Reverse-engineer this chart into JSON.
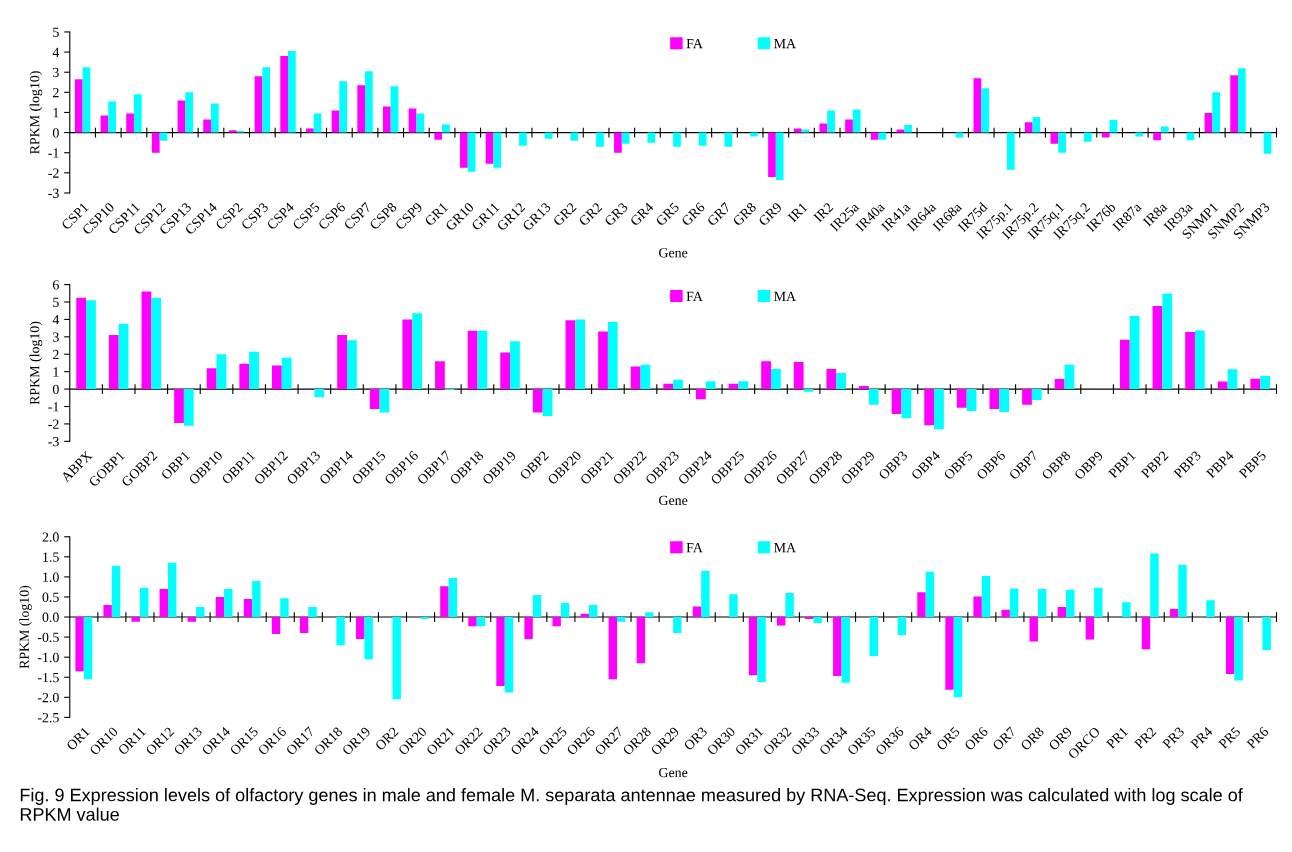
{
  "chart_data": [
    {
      "type": "bar",
      "ylabel": "RPKM (log10)",
      "xlabel": "Gene",
      "legend": "top",
      "categories": [
        "CSP1",
        "CSP10",
        "CSP11",
        "CSP12",
        "CSP13",
        "CSP14",
        "CSP2",
        "CSP3",
        "CSP4",
        "CSP5",
        "CSP6",
        "CSP7",
        "CSP8",
        "CSP9",
        "GR1",
        "GR10",
        "GR11",
        "GR12",
        "GR13",
        "GR2",
        "GR2",
        "GR3",
        "GR4",
        "GR5",
        "GR6",
        "GR7",
        "GR8",
        "GR9",
        "IR1",
        "IR2",
        "IR25a",
        "IR40a",
        "IR41a",
        "IR64a",
        "IR68a",
        "IR75d",
        "IR75p.1",
        "IR75p.2",
        "IR75q.1",
        "IR75q.2",
        "IR76b",
        "IR87a",
        "IR8a",
        "IR93a",
        "SNMP1",
        "SNMP2",
        "SNMP3"
      ],
      "ylim": [
        -3,
        5
      ],
      "yticks": [
        -3,
        -2,
        -1,
        0,
        1,
        2,
        3,
        4,
        5
      ],
      "series": [
        {
          "name": "FA",
          "color": "#ff00ff",
          "values": [
            2.65,
            0.85,
            0.95,
            -1.0,
            1.6,
            0.65,
            0.12,
            2.8,
            3.8,
            0.2,
            1.1,
            2.35,
            1.3,
            1.2,
            -0.35,
            -1.75,
            -1.55,
            null,
            null,
            null,
            null,
            -1.0,
            null,
            null,
            null,
            null,
            null,
            -2.2,
            0.2,
            0.45,
            0.65,
            -0.35,
            0.15,
            null,
            null,
            2.7,
            null,
            0.52,
            -0.55,
            null,
            -0.25,
            null,
            -0.38,
            null,
            0.97,
            2.85,
            null
          ]
        },
        {
          "name": "MA",
          "color": "#00ffff",
          "values": [
            3.25,
            1.55,
            1.9,
            -0.4,
            2.0,
            1.45,
            0.08,
            3.25,
            4.05,
            0.95,
            2.55,
            3.05,
            2.3,
            0.95,
            0.4,
            -1.95,
            -1.75,
            -0.65,
            -0.3,
            -0.4,
            -0.7,
            -0.55,
            -0.5,
            -0.7,
            -0.65,
            -0.7,
            -0.2,
            -2.35,
            0.15,
            1.1,
            1.15,
            -0.35,
            0.38,
            null,
            -0.25,
            2.2,
            -1.85,
            0.77,
            -1.0,
            -0.45,
            0.63,
            -0.2,
            0.3,
            -0.38,
            2.0,
            3.2,
            -1.05
          ]
        }
      ]
    },
    {
      "type": "bar",
      "ylabel": "RPKM (log10)",
      "xlabel": "Gene",
      "legend": "top",
      "categories": [
        "ABPX",
        "GOBP1",
        "GOBP2",
        "OBP1",
        "OBP10",
        "OBP11",
        "OBP12",
        "OBP13",
        "OBP14",
        "OBP15",
        "OBP16",
        "OBP17",
        "OBP18",
        "OBP19",
        "OBP2",
        "OBP20",
        "OBP21",
        "OBP22",
        "OBP23",
        "OBP24",
        "OBP25",
        "OBP26",
        "OBP27",
        "OBP28",
        "OBP29",
        "OBP3",
        "OBP4",
        "OBP5",
        "OBP6",
        "OBP7",
        "OBP8",
        "OBP9",
        "PBP1",
        "PBP2",
        "PBP3",
        "PBP4",
        "PBP5"
      ],
      "ylim": [
        -3,
        6
      ],
      "yticks": [
        -3,
        -2,
        -1,
        0,
        1,
        2,
        3,
        4,
        5,
        6
      ],
      "series": [
        {
          "name": "FA",
          "color": "#ff00ff",
          "values": [
            5.25,
            3.1,
            5.6,
            -1.95,
            1.2,
            1.45,
            1.35,
            null,
            3.1,
            -1.15,
            4.0,
            1.6,
            3.35,
            2.1,
            -1.35,
            3.95,
            3.3,
            1.3,
            0.3,
            -0.58,
            0.3,
            1.6,
            1.55,
            1.15,
            0.17,
            -1.43,
            -2.08,
            -1.07,
            -1.14,
            -0.9,
            0.58,
            null,
            2.83,
            4.77,
            3.27,
            0.44,
            0.6
          ]
        },
        {
          "name": "MA",
          "color": "#00ffff",
          "values": [
            5.1,
            3.75,
            5.25,
            -2.1,
            2.0,
            2.15,
            1.8,
            -0.45,
            2.8,
            -1.35,
            4.35,
            -0.05,
            3.35,
            2.75,
            -1.55,
            4.0,
            3.85,
            1.4,
            0.53,
            0.45,
            0.45,
            1.15,
            -0.15,
            0.92,
            -0.9,
            -1.67,
            -2.3,
            -1.26,
            -1.31,
            -0.63,
            1.4,
            null,
            4.19,
            5.47,
            3.37,
            1.14,
            0.75
          ]
        }
      ]
    },
    {
      "type": "bar",
      "ylabel": "RPKM (log10)",
      "xlabel": "Gene",
      "legend": "top",
      "categories": [
        "OR1",
        "OR10",
        "OR11",
        "OR12",
        "OR13",
        "OR14",
        "OR15",
        "OR16",
        "OR17",
        "OR18",
        "OR19",
        "OR2",
        "OR20",
        "OR21",
        "OR22",
        "OR23",
        "OR24",
        "OR25",
        "OR26",
        "OR27",
        "OR28",
        "OR29",
        "OR3",
        "OR30",
        "OR31",
        "OR32",
        "OR33",
        "OR34",
        "OR35",
        "OR36",
        "OR4",
        "OR5",
        "OR6",
        "OR7",
        "OR8",
        "OR9",
        "ORCO",
        "PR1",
        "PR2",
        "PR3",
        "PR4",
        "PR5",
        "PR6"
      ],
      "ylim": [
        -2.5,
        2.0
      ],
      "yticks": [
        {
          "value": -2.5,
          "label": "-2.5"
        },
        {
          "value": -2.0,
          "label": "-2.0"
        },
        {
          "value": -1.5,
          "label": "-1.5"
        },
        {
          "value": -1.0,
          "label": "-1.0"
        },
        {
          "value": -0.5,
          "label": "-0.5"
        },
        {
          "value": 0,
          "label": "0.0"
        },
        {
          "value": 0.5,
          "label": "0.5"
        },
        {
          "value": 1.0,
          "label": "1.0"
        },
        {
          "value": 1.5,
          "label": "1.5"
        },
        {
          "value": 2.0,
          "label": "2.0"
        }
      ],
      "series": [
        {
          "name": "FA",
          "color": "#ff00ff",
          "values": [
            -1.35,
            0.3,
            -0.12,
            0.7,
            -0.12,
            0.5,
            0.45,
            -0.42,
            -0.4,
            null,
            -0.55,
            null,
            null,
            0.77,
            -0.23,
            -1.72,
            -0.55,
            -0.23,
            0.08,
            -1.55,
            -1.15,
            null,
            0.26,
            null,
            -1.45,
            -0.21,
            -0.05,
            -1.47,
            null,
            null,
            0.62,
            -1.81,
            0.51,
            0.18,
            -0.61,
            0.25,
            -0.56,
            null,
            -0.8,
            0.2,
            null,
            -1.42,
            null
          ]
        },
        {
          "name": "MA",
          "color": "#00ffff",
          "values": [
            -1.55,
            1.28,
            0.73,
            1.35,
            0.25,
            0.7,
            0.9,
            0.47,
            0.25,
            -0.7,
            -1.05,
            -2.05,
            -0.05,
            0.97,
            -0.23,
            -1.88,
            0.55,
            0.35,
            0.3,
            -0.12,
            0.12,
            -0.4,
            1.15,
            0.57,
            -1.62,
            0.6,
            -0.15,
            -1.64,
            -0.97,
            -0.45,
            1.13,
            -2.0,
            1.02,
            0.71,
            0.7,
            0.68,
            0.73,
            0.37,
            1.58,
            1.3,
            0.42,
            -1.58,
            -0.83
          ]
        }
      ],
      "annotations": [
        "Fig. 9 Expression levels of olfactory genes in male and female M. separata antennae measured by RNA-Seq. Expression was calculated with log scale of RPKM value"
      ]
    }
  ]
}
